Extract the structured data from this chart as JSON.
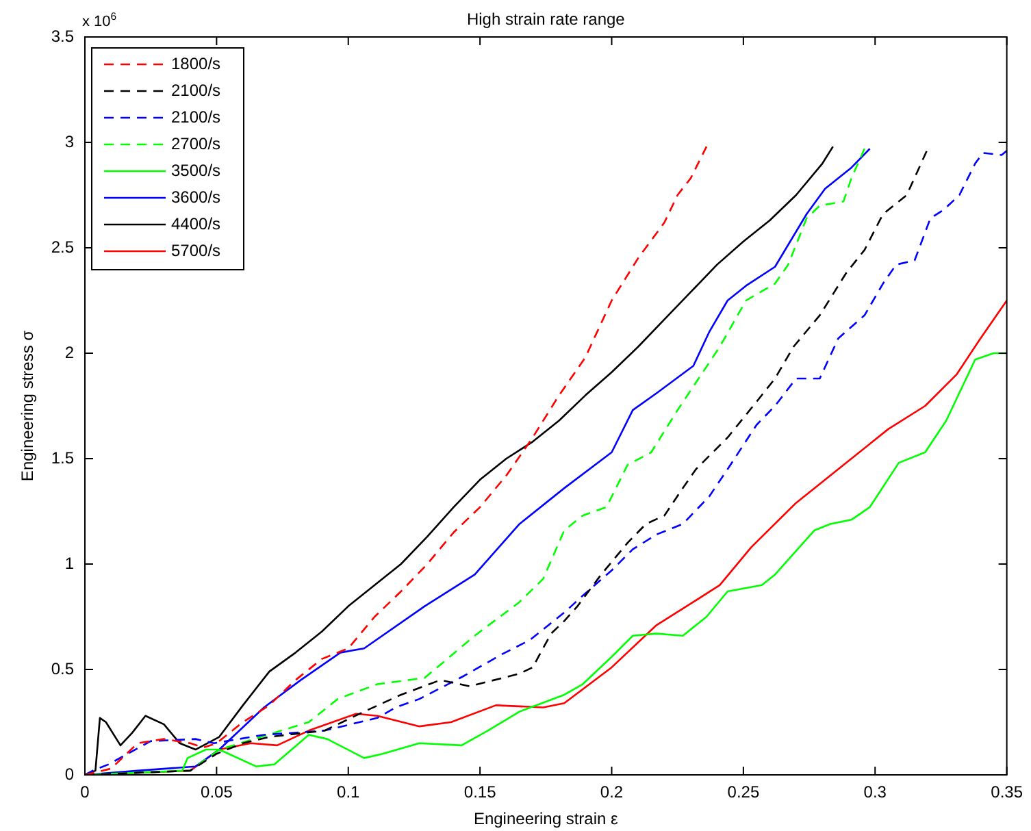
{
  "chart_data": {
    "type": "line",
    "title": "High strain rate range",
    "xlabel": "Engineering strain ε",
    "ylabel": "Engineering stress σ",
    "annotations": [
      "x 10$^{6}$"
    ],
    "xlim": [
      0,
      0.35
    ],
    "xticks": [
      0,
      0.05,
      0.1,
      0.15,
      0.2,
      0.25,
      0.3,
      0.35
    ],
    "ylim": [
      0,
      3.5
    ],
    "yticks": [
      0,
      0.5,
      1,
      1.5,
      2,
      2.5,
      3,
      3.5
    ],
    "grid": false,
    "legend": "top left",
    "marker": "none",
    "series": [
      {
        "name": "1800/s",
        "color": "#ff0000",
        "line_style": "dashed",
        "x": [
          0,
          0.01,
          0.02,
          0.03,
          0.04,
          0.045,
          0.05,
          0.06,
          0.07,
          0.08,
          0.09,
          0.1,
          0.11,
          0.12,
          0.13,
          0.14,
          0.15,
          0.16,
          0.17,
          0.18,
          0.19,
          0.2,
          0.21,
          0.22,
          0.225,
          0.23,
          0.236
        ],
        "values": [
          0,
          0.03,
          0.15,
          0.17,
          0.15,
          0.13,
          0.15,
          0.25,
          0.33,
          0.45,
          0.55,
          0.6,
          0.75,
          0.87,
          1.0,
          1.15,
          1.27,
          1.42,
          1.6,
          1.8,
          1.98,
          2.25,
          2.45,
          2.62,
          2.75,
          2.83,
          2.98
        ]
      },
      {
        "name": "2100/s",
        "color": "#000000",
        "line_style": "dashed",
        "x": [
          0,
          0.02,
          0.04,
          0.05,
          0.06,
          0.07,
          0.091,
          0.106,
          0.12,
          0.135,
          0.146,
          0.165,
          0.17,
          0.177,
          0.182,
          0.187,
          0.196,
          0.206,
          0.213,
          0.22,
          0.227,
          0.232,
          0.244,
          0.255,
          0.262,
          0.269,
          0.279,
          0.289,
          0.296,
          0.303,
          0.312,
          0.32
        ],
        "values": [
          0,
          0.01,
          0.02,
          0.1,
          0.15,
          0.18,
          0.21,
          0.3,
          0.38,
          0.45,
          0.42,
          0.48,
          0.51,
          0.67,
          0.73,
          0.8,
          0.95,
          1.1,
          1.19,
          1.23,
          1.36,
          1.45,
          1.6,
          1.77,
          1.88,
          2.03,
          2.18,
          2.38,
          2.49,
          2.66,
          2.75,
          2.97
        ]
      },
      {
        "name": "2100/s",
        "color": "#0000ff",
        "line_style": "dashed",
        "x": [
          0,
          0.003,
          0.009,
          0.025,
          0.042,
          0.049,
          0.068,
          0.091,
          0.111,
          0.118,
          0.127,
          0.144,
          0.158,
          0.169,
          0.182,
          0.189,
          0.2,
          0.208,
          0.217,
          0.227,
          0.237,
          0.244,
          0.255,
          0.262,
          0.27,
          0.279,
          0.286,
          0.296,
          0.303,
          0.308,
          0.315,
          0.321,
          0.326,
          0.332,
          0.338,
          0.341,
          0.348,
          0.35
        ],
        "values": [
          0,
          0.02,
          0.05,
          0.16,
          0.17,
          0.15,
          0.19,
          0.21,
          0.27,
          0.32,
          0.36,
          0.47,
          0.57,
          0.64,
          0.77,
          0.85,
          0.97,
          1.07,
          1.14,
          1.19,
          1.32,
          1.45,
          1.66,
          1.75,
          1.88,
          1.88,
          2.07,
          2.18,
          2.33,
          2.42,
          2.44,
          2.64,
          2.68,
          2.75,
          2.9,
          2.95,
          2.94,
          2.96
        ]
      },
      {
        "name": "2700/s",
        "color": "#00ff00",
        "line_style": "dashed",
        "x": [
          0,
          0.02,
          0.04,
          0.051,
          0.072,
          0.085,
          0.096,
          0.111,
          0.129,
          0.148,
          0.165,
          0.174,
          0.182,
          0.189,
          0.198,
          0.206,
          0.215,
          0.225,
          0.241,
          0.251,
          0.262,
          0.267,
          0.274,
          0.279,
          0.288,
          0.291,
          0.296
        ],
        "values": [
          0,
          0.01,
          0.02,
          0.12,
          0.2,
          0.25,
          0.36,
          0.43,
          0.46,
          0.66,
          0.82,
          0.93,
          1.16,
          1.23,
          1.27,
          1.47,
          1.53,
          1.73,
          2.03,
          2.25,
          2.33,
          2.42,
          2.64,
          2.7,
          2.72,
          2.83,
          2.97
        ]
      },
      {
        "name": "3500/s",
        "color": "#00ff00",
        "line_style": "solid",
        "x": [
          0,
          0.02,
          0.037,
          0.039,
          0.046,
          0.051,
          0.065,
          0.072,
          0.085,
          0.092,
          0.106,
          0.113,
          0.127,
          0.143,
          0.153,
          0.165,
          0.182,
          0.189,
          0.2,
          0.208,
          0.217,
          0.227,
          0.236,
          0.244,
          0.257,
          0.262,
          0.277,
          0.283,
          0.291,
          0.298,
          0.309,
          0.319,
          0.327,
          0.338,
          0.345,
          0.35
        ],
        "values": [
          0,
          0.01,
          0.02,
          0.08,
          0.12,
          0.12,
          0.04,
          0.05,
          0.19,
          0.17,
          0.08,
          0.1,
          0.15,
          0.14,
          0.21,
          0.3,
          0.38,
          0.43,
          0.56,
          0.66,
          0.67,
          0.66,
          0.75,
          0.87,
          0.9,
          0.95,
          1.16,
          1.19,
          1.21,
          1.27,
          1.48,
          1.53,
          1.68,
          1.97,
          2.0,
          2.0
        ]
      },
      {
        "name": "3600/s",
        "color": "#0000ff",
        "line_style": "solid",
        "x": [
          0,
          0.02,
          0.042,
          0.051,
          0.068,
          0.082,
          0.097,
          0.106,
          0.129,
          0.148,
          0.165,
          0.182,
          0.2,
          0.208,
          0.217,
          0.231,
          0.237,
          0.244,
          0.251,
          0.262,
          0.274,
          0.281,
          0.291,
          0.298
        ],
        "values": [
          0,
          0.02,
          0.04,
          0.12,
          0.32,
          0.45,
          0.58,
          0.6,
          0.8,
          0.95,
          1.19,
          1.36,
          1.53,
          1.73,
          1.81,
          1.94,
          2.1,
          2.25,
          2.32,
          2.41,
          2.66,
          2.78,
          2.88,
          2.97
        ]
      },
      {
        "name": "4400/s",
        "color": "#000000",
        "line_style": "solid",
        "x": [
          0,
          0.004,
          0.0057,
          0.008,
          0.0135,
          0.018,
          0.023,
          0.03,
          0.036,
          0.042,
          0.051,
          0.06,
          0.07,
          0.08,
          0.09,
          0.1,
          0.11,
          0.12,
          0.13,
          0.14,
          0.15,
          0.16,
          0.17,
          0.18,
          0.19,
          0.2,
          0.21,
          0.22,
          0.23,
          0.24,
          0.25,
          0.26,
          0.27,
          0.28,
          0.284
        ],
        "values": [
          0,
          0.02,
          0.27,
          0.25,
          0.14,
          0.2,
          0.28,
          0.24,
          0.15,
          0.12,
          0.18,
          0.33,
          0.49,
          0.58,
          0.68,
          0.8,
          0.9,
          1.0,
          1.13,
          1.27,
          1.4,
          1.5,
          1.58,
          1.68,
          1.8,
          1.91,
          2.03,
          2.16,
          2.29,
          2.42,
          2.53,
          2.63,
          2.75,
          2.9,
          2.98
        ]
      },
      {
        "name": "5700/s",
        "color": "#ff0000",
        "line_style": "solid",
        "x": [
          0,
          0.04,
          0.051,
          0.063,
          0.073,
          0.085,
          0.103,
          0.111,
          0.127,
          0.139,
          0.156,
          0.174,
          0.182,
          0.2,
          0.217,
          0.231,
          0.241,
          0.253,
          0.27,
          0.288,
          0.305,
          0.319,
          0.331,
          0.34,
          0.35
        ],
        "values": [
          0,
          0.02,
          0.12,
          0.15,
          0.14,
          0.21,
          0.29,
          0.28,
          0.23,
          0.25,
          0.33,
          0.32,
          0.34,
          0.51,
          0.71,
          0.82,
          0.9,
          1.08,
          1.29,
          1.47,
          1.64,
          1.75,
          1.9,
          2.07,
          2.25
        ]
      }
    ]
  }
}
